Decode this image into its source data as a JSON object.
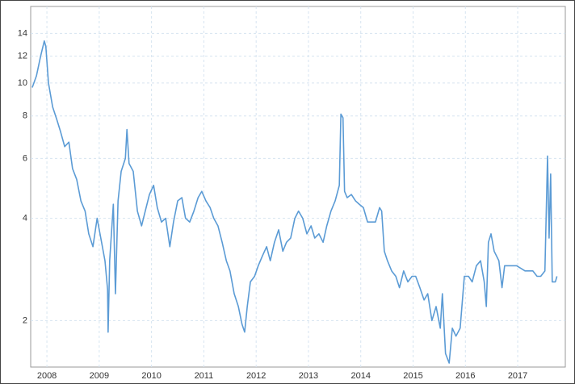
{
  "chart_data": {
    "type": "line",
    "log_scale_y": true,
    "grid": true,
    "x": [
      2007.72,
      2007.8,
      2007.88,
      2007.95,
      2007.98,
      2008.03,
      2008.11,
      2008.19,
      2008.26,
      2008.34,
      2008.42,
      2008.49,
      2008.57,
      2008.65,
      2008.73,
      2008.8,
      2008.88,
      2008.96,
      2009.03,
      2009.11,
      2009.16,
      2009.17,
      2009.2,
      2009.27,
      2009.31,
      2009.36,
      2009.42,
      2009.5,
      2009.53,
      2009.57,
      2009.65,
      2009.73,
      2009.81,
      2009.88,
      2009.96,
      2010.04,
      2010.11,
      2010.19,
      2010.27,
      2010.35,
      2010.42,
      2010.5,
      2010.58,
      2010.65,
      2010.73,
      2010.81,
      2010.89,
      2010.96,
      2011.04,
      2011.12,
      2011.19,
      2011.27,
      2011.35,
      2011.43,
      2011.5,
      2011.58,
      2011.66,
      2011.73,
      2011.78,
      2011.83,
      2011.89,
      2011.97,
      2012.04,
      2012.12,
      2012.2,
      2012.27,
      2012.35,
      2012.43,
      2012.51,
      2012.58,
      2012.66,
      2012.74,
      2012.81,
      2012.89,
      2012.97,
      2013.05,
      2013.12,
      2013.2,
      2013.28,
      2013.35,
      2013.43,
      2013.51,
      2013.59,
      2013.62,
      2013.66,
      2013.69,
      2013.74,
      2013.82,
      2013.9,
      2013.97,
      2014.05,
      2014.13,
      2014.2,
      2014.28,
      2014.36,
      2014.4,
      2014.45,
      2014.51,
      2014.59,
      2014.67,
      2014.74,
      2014.82,
      2014.9,
      2014.98,
      2015.05,
      2015.13,
      2015.21,
      2015.28,
      2015.36,
      2015.44,
      2015.52,
      2015.56,
      2015.62,
      2015.69,
      2015.75,
      2015.82,
      2015.9,
      2015.98,
      2016.06,
      2016.13,
      2016.21,
      2016.29,
      2016.36,
      2016.4,
      2016.44,
      2016.49,
      2016.55,
      2016.64,
      2016.7,
      2016.75,
      2016.83,
      2016.98,
      2017.14,
      2017.29,
      2017.37,
      2017.44,
      2017.52,
      2017.57,
      2017.6,
      2017.63,
      2017.66,
      2017.72,
      2017.75
    ],
    "series": [
      {
        "color": "#5b9bd5",
        "values": [
          9.7,
          10.5,
          12,
          13.3,
          12.8,
          10,
          8.5,
          7.8,
          7.2,
          6.5,
          6.7,
          5.6,
          5.2,
          4.5,
          4.2,
          3.6,
          3.3,
          4.0,
          3.5,
          3.0,
          2.47,
          1.85,
          3.0,
          4.4,
          2.4,
          4.5,
          5.5,
          6.0,
          7.3,
          5.8,
          5.5,
          4.2,
          3.8,
          4.2,
          4.7,
          5.0,
          4.3,
          3.9,
          4.0,
          3.3,
          3.9,
          4.5,
          4.6,
          4.0,
          3.9,
          4.2,
          4.6,
          4.8,
          4.5,
          4.3,
          4.0,
          3.8,
          3.4,
          3.0,
          2.8,
          2.4,
          2.2,
          1.95,
          1.85,
          2.2,
          2.6,
          2.7,
          2.9,
          3.1,
          3.3,
          3.0,
          3.4,
          3.7,
          3.2,
          3.4,
          3.5,
          4.0,
          4.2,
          4.0,
          3.6,
          3.8,
          3.5,
          3.6,
          3.4,
          3.8,
          4.2,
          4.5,
          5.0,
          8.1,
          7.9,
          4.8,
          4.6,
          4.7,
          4.5,
          4.4,
          4.3,
          3.9,
          3.9,
          3.9,
          4.3,
          4.2,
          3.2,
          3.0,
          2.8,
          2.7,
          2.5,
          2.8,
          2.6,
          2.7,
          2.7,
          2.5,
          2.3,
          2.4,
          2.0,
          2.2,
          1.9,
          2.4,
          1.6,
          1.5,
          1.9,
          1.8,
          1.9,
          2.7,
          2.7,
          2.6,
          2.9,
          3.0,
          2.6,
          2.2,
          3.4,
          3.6,
          3.2,
          3.0,
          2.5,
          2.9,
          2.9,
          2.9,
          2.8,
          2.8,
          2.7,
          2.7,
          2.8,
          6.1,
          3.5,
          5.4,
          2.6,
          2.6,
          2.7
        ]
      }
    ],
    "xlim": [
      2007.69,
      2017.91
    ],
    "xticks": [
      2008,
      2009,
      2010,
      2011,
      2012,
      2013,
      2014,
      2015,
      2016,
      2017
    ],
    "ylim": [
      1.46,
      16.8
    ],
    "yticks": [
      2,
      4,
      6,
      8,
      10,
      12,
      14
    ]
  }
}
